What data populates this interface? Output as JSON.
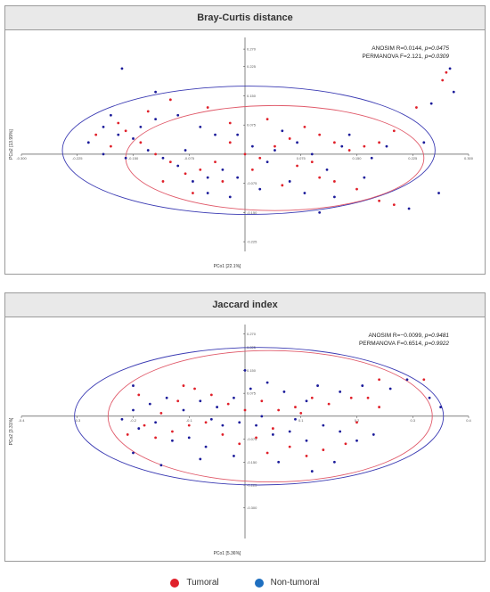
{
  "chart_data": [
    {
      "type": "scatter",
      "title": "Bray-Curtis distance",
      "xlabel": "PCo1 [22.1%]",
      "ylabel": "PCo2 [13.99%]",
      "xlim": [
        -0.3,
        0.3
      ],
      "ylim": [
        -0.25,
        0.3
      ],
      "xticks": [
        "-0.300",
        "-0.225",
        "-0.150",
        "-0.075",
        "0.075",
        "0.150",
        "0.225",
        "0.300"
      ],
      "xtick_values": [
        -0.3,
        -0.225,
        -0.15,
        -0.075,
        0.075,
        0.15,
        0.225,
        0.3
      ],
      "yticks": [
        "0.270",
        "0.225",
        "0.150",
        "0.075",
        "-0.075",
        "-0.150",
        "-0.225"
      ],
      "ytick_values": [
        0.27,
        0.225,
        0.15,
        0.075,
        -0.075,
        -0.15,
        -0.225
      ],
      "stats": [
        "ANOSIM R=0.0144, p=0.0475",
        "PERMANOVA F=2.121, p=0.0309"
      ],
      "ellipses": [
        {
          "group": "Non-tumoral",
          "cx": 0.005,
          "cy": 0.01,
          "rx": 0.25,
          "ry": 0.165,
          "color": "#3b3bb3"
        },
        {
          "group": "Tumoral",
          "cx": 0.04,
          "cy": -0.01,
          "rx": 0.2,
          "ry": 0.135,
          "color": "#e05a6a"
        }
      ],
      "series": [
        {
          "name": "Tumoral",
          "color": "#e0202a",
          "points": [
            [
              0.27,
              0.21
            ],
            [
              0.265,
              0.19
            ],
            [
              0.23,
              0.12
            ],
            [
              0.2,
              0.06
            ],
            [
              0.18,
              0.03
            ],
            [
              0.16,
              0.02
            ],
            [
              0.14,
              0.01
            ],
            [
              0.12,
              0.03
            ],
            [
              0.1,
              0.05
            ],
            [
              0.08,
              0.07
            ],
            [
              0.06,
              0.04
            ],
            [
              0.04,
              0.02
            ],
            [
              0.02,
              -0.01
            ],
            [
              0.0,
              0.0
            ],
            [
              -0.02,
              0.03
            ],
            [
              -0.04,
              -0.02
            ],
            [
              -0.06,
              -0.04
            ],
            [
              -0.08,
              -0.05
            ],
            [
              -0.1,
              -0.02
            ],
            [
              -0.12,
              0.0
            ],
            [
              -0.14,
              0.03
            ],
            [
              -0.16,
              0.06
            ],
            [
              -0.18,
              0.02
            ],
            [
              -0.2,
              0.05
            ],
            [
              -0.17,
              0.08
            ],
            [
              -0.13,
              0.11
            ],
            [
              -0.1,
              0.14
            ],
            [
              -0.05,
              0.12
            ],
            [
              -0.02,
              0.08
            ],
            [
              0.03,
              0.09
            ],
            [
              0.07,
              -0.03
            ],
            [
              0.1,
              -0.06
            ],
            [
              0.12,
              -0.07
            ],
            [
              0.15,
              -0.09
            ],
            [
              0.2,
              -0.13
            ],
            [
              0.18,
              -0.12
            ],
            [
              0.05,
              -0.08
            ],
            [
              -0.03,
              -0.07
            ],
            [
              -0.07,
              -0.1
            ],
            [
              -0.11,
              -0.07
            ],
            [
              0.01,
              -0.04
            ],
            [
              0.09,
              -0.02
            ]
          ]
        },
        {
          "name": "Non-tumoral",
          "color": "#1b1b9a",
          "points": [
            [
              -0.165,
              0.22
            ],
            [
              0.275,
              0.22
            ],
            [
              0.28,
              0.16
            ],
            [
              0.25,
              0.13
            ],
            [
              0.26,
              -0.1
            ],
            [
              0.22,
              -0.14
            ],
            [
              0.24,
              0.03
            ],
            [
              0.19,
              0.02
            ],
            [
              0.17,
              -0.01
            ],
            [
              0.13,
              0.02
            ],
            [
              0.11,
              -0.04
            ],
            [
              0.09,
              0.0
            ],
            [
              0.07,
              0.03
            ],
            [
              0.05,
              0.06
            ],
            [
              0.03,
              -0.02
            ],
            [
              0.01,
              0.02
            ],
            [
              -0.01,
              -0.06
            ],
            [
              -0.03,
              -0.04
            ],
            [
              -0.05,
              -0.06
            ],
            [
              -0.07,
              -0.07
            ],
            [
              -0.09,
              -0.03
            ],
            [
              -0.11,
              -0.01
            ],
            [
              -0.13,
              0.01
            ],
            [
              -0.15,
              0.04
            ],
            [
              -0.17,
              0.05
            ],
            [
              -0.19,
              0.07
            ],
            [
              -0.21,
              0.03
            ],
            [
              -0.19,
              0.0
            ],
            [
              -0.16,
              -0.01
            ],
            [
              -0.14,
              0.07
            ],
            [
              -0.12,
              0.09
            ],
            [
              -0.09,
              0.1
            ],
            [
              -0.06,
              0.07
            ],
            [
              -0.04,
              0.05
            ],
            [
              -0.01,
              0.05
            ],
            [
              0.02,
              -0.09
            ],
            [
              -0.02,
              -0.11
            ],
            [
              -0.05,
              -0.1
            ],
            [
              0.06,
              -0.07
            ],
            [
              0.08,
              -0.1
            ],
            [
              0.12,
              -0.11
            ],
            [
              0.1,
              -0.15
            ],
            [
              0.16,
              -0.06
            ],
            [
              0.14,
              0.05
            ],
            [
              0.04,
              0.01
            ],
            [
              -0.08,
              0.01
            ],
            [
              -0.18,
              0.1
            ],
            [
              -0.12,
              0.16
            ]
          ]
        }
      ]
    },
    {
      "type": "scatter",
      "title": "Jaccard index",
      "xlabel": "PCo1 [5.36%]",
      "ylabel": "PCo2 [3.31%]",
      "xlim": [
        -0.4,
        0.4
      ],
      "ylim": [
        -0.4,
        0.3
      ],
      "xticks": [
        "-0.4",
        "-0.3",
        "-0.2",
        "-0.1",
        "0.1",
        "0.2",
        "0.3",
        "0.4"
      ],
      "xtick_values": [
        -0.4,
        -0.3,
        -0.2,
        -0.1,
        0.1,
        0.2,
        0.3,
        0.4
      ],
      "yticks": [
        "0.270",
        "0.225",
        "0.150",
        "0.075",
        "-0.075",
        "-0.150",
        "-0.225",
        "-0.300"
      ],
      "ytick_values": [
        0.27,
        0.225,
        0.15,
        0.075,
        -0.075,
        -0.15,
        -0.225,
        -0.3
      ],
      "stats": [
        "ANOSIM R=−0.0099, p=0.9481",
        "PERMANOVA F=0.6514, p=0.9922"
      ],
      "ellipses": [
        {
          "group": "Non-tumoral",
          "cx": 0.025,
          "cy": 0.0,
          "rx": 0.33,
          "ry": 0.225,
          "color": "#3b3bb3"
        },
        {
          "group": "Tumoral",
          "cx": 0.045,
          "cy": 0.0,
          "rx": 0.29,
          "ry": 0.215,
          "color": "#e05a6a"
        }
      ],
      "series": [
        {
          "name": "Tumoral",
          "color": "#e0202a",
          "points": [
            [
              0.32,
              0.12
            ],
            [
              0.24,
              0.12
            ],
            [
              0.22,
              0.06
            ],
            [
              0.19,
              0.06
            ],
            [
              0.15,
              0.04
            ],
            [
              0.12,
              0.06
            ],
            [
              0.09,
              0.03
            ],
            [
              0.06,
              0.02
            ],
            [
              0.03,
              0.05
            ],
            [
              0.0,
              0.02
            ],
            [
              -0.03,
              0.04
            ],
            [
              -0.06,
              0.07
            ],
            [
              -0.09,
              0.09
            ],
            [
              -0.12,
              0.05
            ],
            [
              -0.15,
              0.01
            ],
            [
              -0.18,
              -0.03
            ],
            [
              -0.21,
              -0.06
            ],
            [
              -0.16,
              -0.07
            ],
            [
              -0.13,
              -0.05
            ],
            [
              -0.1,
              -0.03
            ],
            [
              -0.07,
              -0.02
            ],
            [
              -0.04,
              -0.06
            ],
            [
              -0.01,
              -0.09
            ],
            [
              0.02,
              -0.07
            ],
            [
              0.05,
              -0.04
            ],
            [
              0.08,
              -0.1
            ],
            [
              0.11,
              -0.13
            ],
            [
              0.14,
              -0.11
            ],
            [
              0.18,
              -0.09
            ],
            [
              0.2,
              -0.02
            ],
            [
              0.24,
              0.03
            ],
            [
              0.1,
              0.01
            ],
            [
              -0.19,
              0.07
            ],
            [
              -0.11,
              0.1
            ],
            [
              0.04,
              -0.12
            ]
          ]
        },
        {
          "name": "Non-tumoral",
          "color": "#1b1b9a",
          "points": [
            [
              0.29,
              0.12
            ],
            [
              0.33,
              0.06
            ],
            [
              0.35,
              0.03
            ],
            [
              0.26,
              0.09
            ],
            [
              0.21,
              0.1
            ],
            [
              0.17,
              0.08
            ],
            [
              0.13,
              0.1
            ],
            [
              0.11,
              0.05
            ],
            [
              0.07,
              0.08
            ],
            [
              0.04,
              0.11
            ],
            [
              0.01,
              0.09
            ],
            [
              -0.02,
              0.06
            ],
            [
              -0.05,
              0.03
            ],
            [
              -0.08,
              0.05
            ],
            [
              -0.11,
              0.02
            ],
            [
              -0.14,
              0.06
            ],
            [
              -0.17,
              0.04
            ],
            [
              -0.2,
              0.02
            ],
            [
              -0.22,
              -0.01
            ],
            [
              -0.19,
              -0.04
            ],
            [
              -0.16,
              -0.02
            ],
            [
              -0.13,
              -0.08
            ],
            [
              -0.1,
              -0.07
            ],
            [
              -0.07,
              -0.1
            ],
            [
              -0.04,
              -0.03
            ],
            [
              -0.01,
              -0.02
            ],
            [
              0.02,
              -0.03
            ],
            [
              0.05,
              -0.06
            ],
            [
              0.08,
              -0.05
            ],
            [
              0.11,
              -0.08
            ],
            [
              0.14,
              -0.03
            ],
            [
              0.17,
              -0.05
            ],
            [
              0.2,
              -0.08
            ],
            [
              0.23,
              -0.06
            ],
            [
              0.16,
              -0.15
            ],
            [
              0.12,
              -0.18
            ],
            [
              0.06,
              -0.15
            ],
            [
              -0.02,
              -0.13
            ],
            [
              -0.08,
              -0.14
            ],
            [
              -0.2,
              -0.12
            ],
            [
              -0.15,
              -0.16
            ],
            [
              0.0,
              0.15
            ],
            [
              -0.2,
              0.1
            ],
            [
              0.03,
              0.0
            ],
            [
              -0.06,
              -0.01
            ],
            [
              0.09,
              -0.01
            ]
          ]
        }
      ]
    }
  ],
  "legend": {
    "items": [
      {
        "label": "Tumoral",
        "color": "#e0202a"
      },
      {
        "label": "Non-tumoral",
        "color": "#1e6fc0"
      }
    ]
  }
}
